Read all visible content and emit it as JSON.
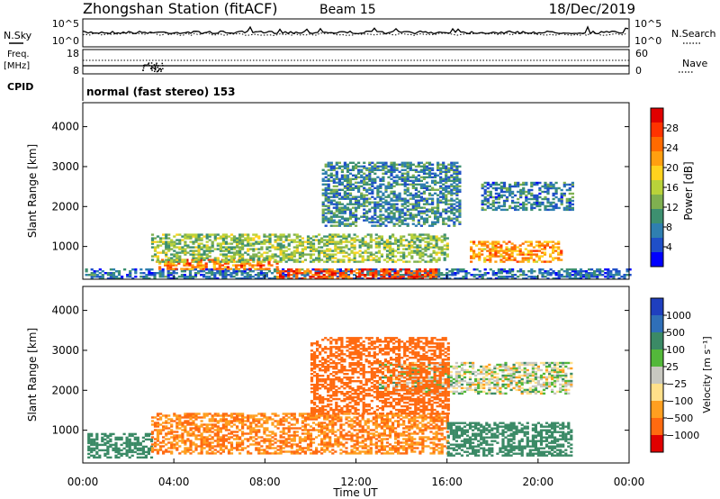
{
  "header": {
    "station": "Zhongshan Station (fitACF)",
    "beam": "Beam 15",
    "date": "18/Dec/2019"
  },
  "status_panels": {
    "nsky_label": "N.Sky",
    "nsky_ticks": [
      "10^5",
      "10^0"
    ],
    "nsearch_label": "N.Search",
    "nsearch_ticks": [
      "10^5",
      "10^0"
    ],
    "freq_label_1": "Freq.",
    "freq_label_2": "[MHz]",
    "freq_ticks": [
      "18",
      "8"
    ],
    "nave_label": "Nave",
    "nave_ticks": [
      "60",
      "0"
    ],
    "cpid_label": "CPID",
    "cpid_text": "normal (fast stereo) 153"
  },
  "chart_data": [
    {
      "type": "heatmap",
      "panel": "power",
      "xlabel": "Time UT",
      "ylabel": "Slant Range [km]",
      "x_ticks": [
        "00:00",
        "04:00",
        "08:00",
        "12:00",
        "16:00",
        "20:00",
        "00:00"
      ],
      "xlim_hours": [
        0,
        24
      ],
      "ylim_km": [
        180,
        4600
      ],
      "y_ticks": [
        1000,
        2000,
        3000,
        4000
      ],
      "colorbar_label": "Power [dB]",
      "colorbar_ticks": [
        "4",
        "8",
        "12",
        "16",
        "20",
        "24",
        "28"
      ],
      "colorbar_colors": [
        "#0000ff",
        "#1f4fc8",
        "#2f7fb0",
        "#3d9070",
        "#7fb050",
        "#b9d23a",
        "#ffd21e",
        "#ff9f10",
        "#ff6a00",
        "#ff3300",
        "#e00000"
      ],
      "regions": [
        {
          "t0": 0.1,
          "t1": 24,
          "r0": 180,
          "r1": 420,
          "value": 7
        },
        {
          "t0": 3.2,
          "t1": 8.5,
          "r0": 420,
          "r1": 650,
          "value": 24
        },
        {
          "t0": 8.5,
          "t1": 15.5,
          "r0": 180,
          "r1": 420,
          "value": 26
        },
        {
          "t0": 3.0,
          "t1": 16.0,
          "r0": 600,
          "r1": 1300,
          "value": 14
        },
        {
          "t0": 17.0,
          "t1": 21.0,
          "r0": 600,
          "r1": 1100,
          "value": 22
        },
        {
          "t0": 10.5,
          "t1": 16.5,
          "r0": 1500,
          "r1": 3100,
          "value": 9
        },
        {
          "t0": 17.5,
          "t1": 21.5,
          "r0": 1900,
          "r1": 2600,
          "value": 8
        }
      ]
    },
    {
      "type": "heatmap",
      "panel": "velocity",
      "xlabel": "Time UT",
      "ylabel": "Slant Range [km]",
      "x_ticks": [
        "00:00",
        "04:00",
        "08:00",
        "12:00",
        "16:00",
        "20:00",
        "00:00"
      ],
      "xlim_hours": [
        0,
        24
      ],
      "ylim_km": [
        180,
        4600
      ],
      "y_ticks": [
        1000,
        2000,
        3000,
        4000
      ],
      "colorbar_label": "Velocity [m s⁻¹]",
      "colorbar_ticks": [
        "1000",
        "500",
        "100",
        "25",
        "−25",
        "−100",
        "−500",
        "−1000"
      ],
      "colorbar_colors": [
        "#1f3fbf",
        "#2f6fb8",
        "#3b8a66",
        "#53b83a",
        "#c8c8c0",
        "#ffe08a",
        "#ff9f20",
        "#ff6a10",
        "#e00000"
      ],
      "regions": [
        {
          "t0": 0.2,
          "t1": 3.0,
          "r0": 300,
          "r1": 900,
          "value": 200
        },
        {
          "t0": 3.0,
          "t1": 16.0,
          "r0": 400,
          "r1": 1400,
          "value": -300
        },
        {
          "t0": 16.0,
          "t1": 21.5,
          "r0": 350,
          "r1": 1200,
          "value": 150
        },
        {
          "t0": 13.0,
          "t1": 21.5,
          "r0": 1900,
          "r1": 2700,
          "value": 0
        },
        {
          "t0": 10.0,
          "t1": 16.0,
          "r0": 1400,
          "r1": 3300,
          "value": -400
        }
      ]
    }
  ]
}
